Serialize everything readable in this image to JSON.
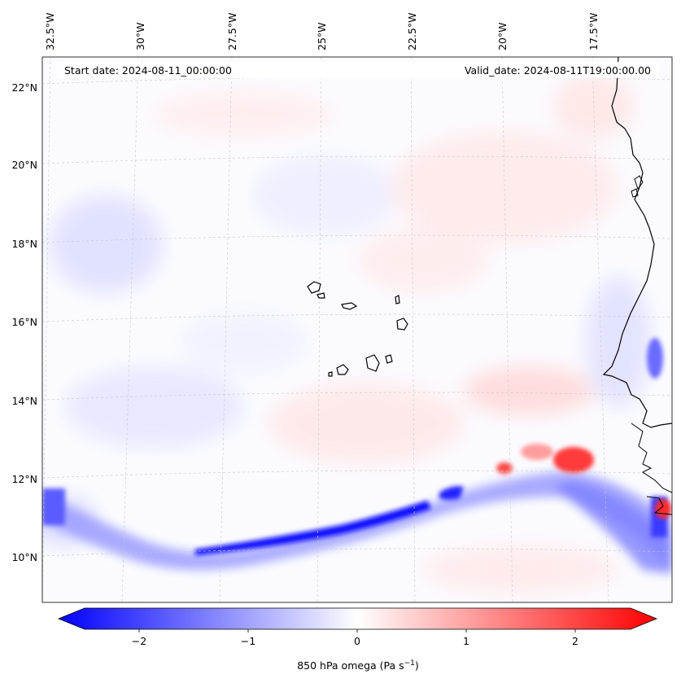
{
  "map": {
    "start_date": "Start date: 2024-08-11_00:00:00",
    "valid_date": "Valid_date: 2024-08-11T19:00:00.00",
    "lon_labels": [
      "32.5°W",
      "30°W",
      "27.5°W",
      "25°W",
      "22.5°W",
      "20°W",
      "17.5°W"
    ],
    "lat_labels": [
      "22°N",
      "20°N",
      "18°N",
      "16°N",
      "14°N",
      "12°N",
      "10°N"
    ]
  },
  "colorbar": {
    "ticks": [
      "−2",
      "−1",
      "0",
      "1",
      "2"
    ],
    "label_main": "850 hPa omega (Pa s",
    "label_sup": "−1",
    "label_end": ")",
    "min_color": "#0000ff",
    "mid_color": "#ffffff",
    "max_color": "#ff0000"
  }
}
